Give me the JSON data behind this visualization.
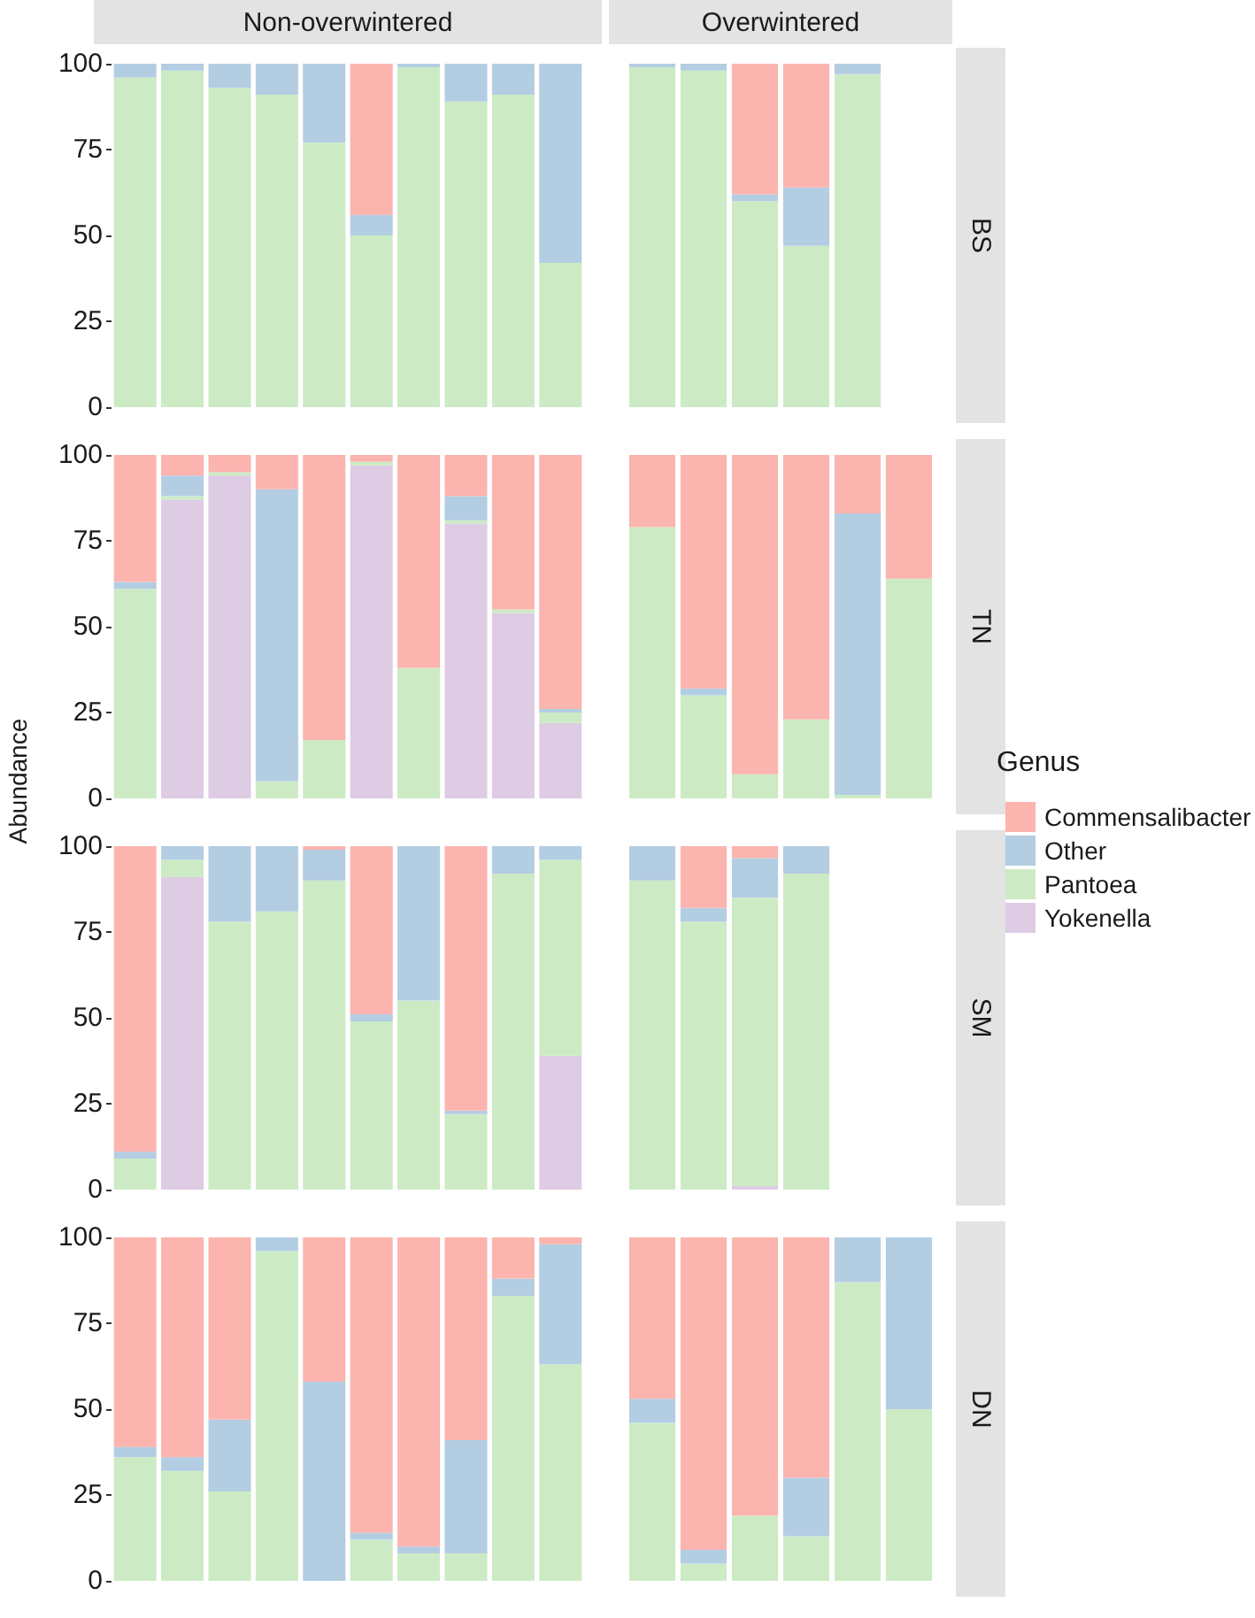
{
  "chart_data": [
    {
      "type": "bar",
      "title": "Non-overwintered",
      "legend_title": "Genus",
      "legend": "right",
      "stacked": true,
      "tick_labels": "y",
      "grid": false,
      "ylim": [
        0,
        100
      ],
      "yticks": [
        0,
        25,
        50,
        75,
        100
      ],
      "categories": [
        null,
        null,
        null,
        null,
        null,
        null,
        null,
        null,
        null,
        null
      ],
      "series": [
        {
          "name": "Pantoea",
          "color": "#ccebc5",
          "values": [
            96,
            98,
            93,
            91,
            77,
            50,
            99,
            89,
            91,
            42
          ]
        },
        {
          "name": "Other",
          "color": "#b3cde3",
          "values": [
            4,
            2,
            7,
            9,
            23,
            6,
            1,
            11,
            9,
            58
          ]
        },
        {
          "name": "Commensalibacter",
          "color": "#fbb4ae",
          "values": [
            null,
            null,
            null,
            null,
            null,
            44,
            null,
            null,
            null,
            null
          ]
        }
      ]
    },
    {
      "type": "bar",
      "title": "Overwintered",
      "annotations": [
        "BS"
      ],
      "stacked": true,
      "tick_labels": false,
      "grid": false,
      "ylim": [
        0,
        100
      ],
      "yticks": [
        0,
        25,
        50,
        75,
        100
      ],
      "categories": [
        null,
        null,
        null,
        null,
        null,
        null
      ],
      "series": [
        {
          "name": "Pantoea",
          "color": "#ccebc5",
          "values": [
            99,
            98,
            60,
            47,
            97,
            null
          ]
        },
        {
          "name": "Other",
          "color": "#b3cde3",
          "values": [
            1,
            2,
            2,
            17,
            3,
            null
          ]
        },
        {
          "name": "Commensalibacter",
          "color": "#fbb4ae",
          "values": [
            null,
            null,
            38,
            36,
            null,
            null
          ]
        }
      ]
    },
    {
      "type": "bar",
      "ylabel": "Abundance",
      "stacked": true,
      "tick_labels": "y",
      "grid": false,
      "ylim": [
        0,
        100
      ],
      "yticks": [
        0,
        25,
        50,
        75,
        100
      ],
      "categories": [
        null,
        null,
        null,
        null,
        null,
        null,
        null,
        null,
        null,
        null
      ],
      "series": [
        {
          "name": "Yokenella",
          "color": "#decbe4",
          "values": [
            null,
            87,
            94,
            null,
            null,
            97,
            null,
            80,
            54,
            22
          ]
        },
        {
          "name": "Pantoea",
          "color": "#ccebc5",
          "values": [
            61,
            1,
            1,
            5,
            17,
            1,
            38,
            1,
            1,
            3
          ]
        },
        {
          "name": "Other",
          "color": "#b3cde3",
          "values": [
            2,
            6,
            null,
            85,
            null,
            null,
            null,
            7,
            null,
            1
          ]
        },
        {
          "name": "Commensalibacter",
          "color": "#fbb4ae",
          "values": [
            37,
            6,
            5,
            10,
            83,
            2,
            62,
            12,
            45,
            74
          ]
        }
      ]
    },
    {
      "type": "bar",
      "annotations": [
        "TN"
      ],
      "stacked": true,
      "tick_labels": false,
      "grid": false,
      "ylim": [
        0,
        100
      ],
      "yticks": [
        0,
        25,
        50,
        75,
        100
      ],
      "categories": [
        null,
        null,
        null,
        null,
        null,
        null
      ],
      "series": [
        {
          "name": "Pantoea",
          "color": "#ccebc5",
          "values": [
            79,
            30,
            7,
            23,
            1,
            64
          ]
        },
        {
          "name": "Other",
          "color": "#b3cde3",
          "values": [
            null,
            2,
            null,
            null,
            82,
            null
          ]
        },
        {
          "name": "Commensalibacter",
          "color": "#fbb4ae",
          "values": [
            21,
            68,
            93,
            77,
            17,
            36
          ]
        }
      ]
    },
    {
      "type": "bar",
      "stacked": true,
      "tick_labels": "y",
      "grid": false,
      "ylim": [
        0,
        100
      ],
      "yticks": [
        0,
        25,
        50,
        75,
        100
      ],
      "categories": [
        null,
        null,
        null,
        null,
        null,
        null,
        null,
        null,
        null,
        null
      ],
      "series": [
        {
          "name": "Yokenella",
          "color": "#decbe4",
          "values": [
            null,
            91,
            null,
            null,
            null,
            null,
            null,
            null,
            null,
            39
          ]
        },
        {
          "name": "Pantoea",
          "color": "#ccebc5",
          "values": [
            9,
            5,
            78,
            81,
            90,
            49,
            55,
            22,
            92,
            57
          ]
        },
        {
          "name": "Other",
          "color": "#b3cde3",
          "values": [
            2,
            4,
            22,
            19,
            9,
            2,
            45,
            1,
            8,
            4
          ]
        },
        {
          "name": "Commensalibacter",
          "color": "#fbb4ae",
          "values": [
            89,
            null,
            null,
            null,
            1,
            49,
            null,
            77,
            null,
            null
          ]
        }
      ]
    },
    {
      "type": "bar",
      "annotations": [
        "SM"
      ],
      "stacked": true,
      "tick_labels": false,
      "grid": false,
      "ylim": [
        0,
        100
      ],
      "yticks": [
        0,
        25,
        50,
        75,
        100
      ],
      "categories": [
        null,
        null,
        null,
        null,
        null,
        null
      ],
      "series": [
        {
          "name": "Yokenella",
          "color": "#decbe4",
          "values": [
            null,
            null,
            1,
            null,
            null,
            null
          ]
        },
        {
          "name": "Pantoea",
          "color": "#ccebc5",
          "values": [
            90,
            78,
            84,
            92,
            null,
            null
          ]
        },
        {
          "name": "Other",
          "color": "#b3cde3",
          "values": [
            10,
            4,
            11.5,
            8,
            null,
            null
          ]
        },
        {
          "name": "Commensalibacter",
          "color": "#fbb4ae",
          "values": [
            null,
            18,
            3.5,
            null,
            null,
            null
          ]
        }
      ]
    },
    {
      "type": "bar",
      "stacked": true,
      "tick_labels": "y",
      "grid": false,
      "ylim": [
        0,
        100
      ],
      "yticks": [
        0,
        25,
        50,
        75,
        100
      ],
      "categories": [
        null,
        null,
        null,
        null,
        null,
        null,
        null,
        null,
        null,
        null
      ],
      "series": [
        {
          "name": "Pantoea",
          "color": "#ccebc5",
          "values": [
            36,
            32,
            26,
            96,
            null,
            12,
            8,
            8,
            83,
            63
          ]
        },
        {
          "name": "Other",
          "color": "#b3cde3",
          "values": [
            3,
            4,
            21,
            4,
            58,
            2,
            2,
            33,
            5,
            35
          ]
        },
        {
          "name": "Commensalibacter",
          "color": "#fbb4ae",
          "values": [
            61,
            64,
            53,
            null,
            42,
            86,
            90,
            59,
            12,
            2
          ]
        }
      ]
    },
    {
      "type": "bar",
      "annotations": [
        "DN"
      ],
      "stacked": true,
      "tick_labels": false,
      "grid": false,
      "ylim": [
        0,
        100
      ],
      "yticks": [
        0,
        25,
        50,
        75,
        100
      ],
      "categories": [
        null,
        null,
        null,
        null,
        null,
        null
      ],
      "series": [
        {
          "name": "Pantoea",
          "color": "#ccebc5",
          "values": [
            46,
            5,
            19,
            13,
            87,
            50
          ]
        },
        {
          "name": "Other",
          "color": "#b3cde3",
          "values": [
            7,
            4,
            null,
            17,
            13,
            50
          ]
        },
        {
          "name": "Commensalibacter",
          "color": "#fbb4ae",
          "values": [
            47,
            91,
            81,
            70,
            null,
            null
          ]
        }
      ]
    }
  ]
}
